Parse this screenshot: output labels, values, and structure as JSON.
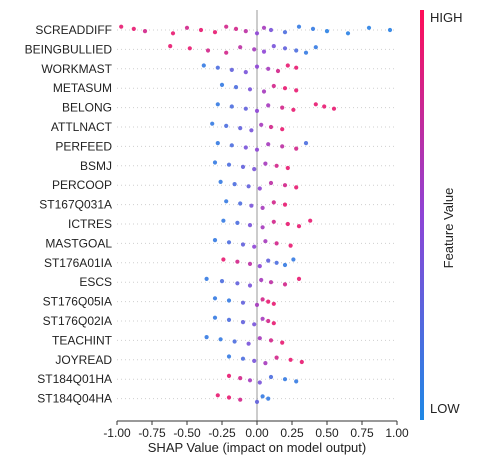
{
  "chart_data": {
    "type": "scatter",
    "subtype": "shap-beeswarm",
    "xlabel": "SHAP Value (impact on model output)",
    "xlim": [
      -1.0,
      1.0
    ],
    "xticks": [
      "-1.00",
      "-0.75",
      "-0.50",
      "-0.25",
      "0.00",
      "0.25",
      "0.50",
      "0.75",
      "1.00"
    ],
    "colorbar": {
      "label": "Feature Value",
      "high": "HIGH",
      "low": "LOW",
      "colors": [
        "#ff0d57",
        "#8e44d6",
        "#1e88e5"
      ]
    },
    "features": [
      {
        "name": "SCREADDIFF",
        "points": [
          [
            -0.97,
            0.9
          ],
          [
            -0.88,
            0.9
          ],
          [
            -0.8,
            0.8
          ],
          [
            -0.6,
            0.9
          ],
          [
            -0.5,
            0.8
          ],
          [
            -0.4,
            0.9
          ],
          [
            -0.3,
            0.9
          ],
          [
            -0.22,
            0.8
          ],
          [
            -0.15,
            0.8
          ],
          [
            -0.08,
            0.7
          ],
          [
            0.0,
            0.5
          ],
          [
            0.05,
            0.6
          ],
          [
            0.1,
            0.4
          ],
          [
            0.2,
            0.2
          ],
          [
            0.3,
            0.1
          ],
          [
            0.4,
            0.1
          ],
          [
            0.5,
            0.05
          ],
          [
            0.65,
            0.05
          ],
          [
            0.8,
            0.05
          ],
          [
            0.95,
            0.05
          ]
        ]
      },
      {
        "name": "BEINGBULLIED",
        "points": [
          [
            -0.62,
            0.9
          ],
          [
            -0.48,
            0.9
          ],
          [
            -0.35,
            0.8
          ],
          [
            -0.22,
            0.8
          ],
          [
            -0.12,
            0.7
          ],
          [
            -0.02,
            0.6
          ],
          [
            0.05,
            0.5
          ],
          [
            0.12,
            0.4
          ],
          [
            0.2,
            0.3
          ],
          [
            0.28,
            0.2
          ],
          [
            0.35,
            0.1
          ],
          [
            0.42,
            0.1
          ]
        ]
      },
      {
        "name": "WORKMAST",
        "points": [
          [
            -0.38,
            0.1
          ],
          [
            -0.28,
            0.2
          ],
          [
            -0.18,
            0.3
          ],
          [
            -0.08,
            0.4
          ],
          [
            0.0,
            0.5
          ],
          [
            0.08,
            0.6
          ],
          [
            0.15,
            0.8
          ],
          [
            0.22,
            0.9
          ],
          [
            0.28,
            0.9
          ]
        ]
      },
      {
        "name": "METASUM",
        "points": [
          [
            -0.25,
            0.1
          ],
          [
            -0.15,
            0.2
          ],
          [
            -0.05,
            0.4
          ],
          [
            0.05,
            0.6
          ],
          [
            0.12,
            0.8
          ],
          [
            0.2,
            0.9
          ],
          [
            0.28,
            0.9
          ]
        ]
      },
      {
        "name": "BELONG",
        "points": [
          [
            -0.28,
            0.1
          ],
          [
            -0.18,
            0.2
          ],
          [
            -0.08,
            0.3
          ],
          [
            0.0,
            0.5
          ],
          [
            0.08,
            0.6
          ],
          [
            0.18,
            0.8
          ],
          [
            0.26,
            0.9
          ],
          [
            0.42,
            0.9
          ],
          [
            0.48,
            0.9
          ],
          [
            0.55,
            0.9
          ]
        ]
      },
      {
        "name": "ATTLNACT",
        "points": [
          [
            -0.32,
            0.1
          ],
          [
            -0.22,
            0.2
          ],
          [
            -0.12,
            0.3
          ],
          [
            -0.04,
            0.4
          ],
          [
            0.03,
            0.6
          ],
          [
            0.1,
            0.8
          ],
          [
            0.18,
            0.9
          ]
        ]
      },
      {
        "name": "PERFEED",
        "points": [
          [
            -0.28,
            0.1
          ],
          [
            -0.18,
            0.2
          ],
          [
            -0.08,
            0.4
          ],
          [
            0.0,
            0.5
          ],
          [
            0.08,
            0.6
          ],
          [
            0.18,
            0.7
          ],
          [
            0.28,
            0.8
          ],
          [
            0.35,
            0.2
          ]
        ]
      },
      {
        "name": "BSMJ",
        "points": [
          [
            -0.3,
            0.1
          ],
          [
            -0.2,
            0.2
          ],
          [
            -0.1,
            0.3
          ],
          [
            -0.02,
            0.4
          ],
          [
            0.06,
            0.6
          ],
          [
            0.14,
            0.8
          ],
          [
            0.22,
            0.9
          ]
        ]
      },
      {
        "name": "PERCOOP",
        "points": [
          [
            -0.26,
            0.1
          ],
          [
            -0.16,
            0.2
          ],
          [
            -0.06,
            0.3
          ],
          [
            0.02,
            0.5
          ],
          [
            0.1,
            0.7
          ],
          [
            0.2,
            0.8
          ],
          [
            0.28,
            0.9
          ]
        ]
      },
      {
        "name": "ST167Q031A",
        "points": [
          [
            -0.22,
            0.1
          ],
          [
            -0.12,
            0.2
          ],
          [
            -0.04,
            0.4
          ],
          [
            0.04,
            0.6
          ],
          [
            0.12,
            0.8
          ],
          [
            0.2,
            0.9
          ]
        ]
      },
      {
        "name": "ICTRES",
        "points": [
          [
            -0.24,
            0.1
          ],
          [
            -0.14,
            0.2
          ],
          [
            -0.05,
            0.4
          ],
          [
            0.04,
            0.6
          ],
          [
            0.12,
            0.8
          ],
          [
            0.22,
            0.9
          ],
          [
            0.3,
            0.9
          ],
          [
            0.38,
            0.9
          ]
        ]
      },
      {
        "name": "MASTGOAL",
        "points": [
          [
            -0.3,
            0.1
          ],
          [
            -0.2,
            0.2
          ],
          [
            -0.1,
            0.3
          ],
          [
            -0.02,
            0.5
          ],
          [
            0.06,
            0.6
          ],
          [
            0.14,
            0.8
          ],
          [
            0.24,
            0.9
          ]
        ]
      },
      {
        "name": "ST176A01IA",
        "points": [
          [
            -0.24,
            0.9
          ],
          [
            -0.14,
            0.8
          ],
          [
            -0.05,
            0.7
          ],
          [
            0.02,
            0.5
          ],
          [
            0.08,
            0.3
          ],
          [
            0.14,
            0.2
          ],
          [
            0.2,
            0.1
          ],
          [
            0.26,
            0.1
          ]
        ]
      },
      {
        "name": "ESCS",
        "points": [
          [
            -0.36,
            0.1
          ],
          [
            -0.25,
            0.2
          ],
          [
            -0.14,
            0.3
          ],
          [
            -0.05,
            0.4
          ],
          [
            0.03,
            0.6
          ],
          [
            0.1,
            0.7
          ],
          [
            0.2,
            0.8
          ],
          [
            0.3,
            0.9
          ]
        ]
      },
      {
        "name": "ST176Q05IA",
        "points": [
          [
            -0.3,
            0.1
          ],
          [
            -0.2,
            0.1
          ],
          [
            -0.1,
            0.3
          ],
          [
            0.0,
            0.6
          ],
          [
            0.04,
            0.8
          ],
          [
            0.08,
            0.9
          ],
          [
            0.12,
            0.9
          ]
        ]
      },
      {
        "name": "ST176Q02IA",
        "points": [
          [
            -0.3,
            0.1
          ],
          [
            -0.2,
            0.2
          ],
          [
            -0.1,
            0.3
          ],
          [
            -0.02,
            0.4
          ],
          [
            0.04,
            0.6
          ],
          [
            0.08,
            0.8
          ],
          [
            0.12,
            0.9
          ]
        ]
      },
      {
        "name": "TEACHINT",
        "points": [
          [
            -0.36,
            0.1
          ],
          [
            -0.26,
            0.1
          ],
          [
            -0.16,
            0.2
          ],
          [
            -0.06,
            0.4
          ],
          [
            0.02,
            0.6
          ],
          [
            0.1,
            0.8
          ],
          [
            0.18,
            0.9
          ]
        ]
      },
      {
        "name": "JOYREAD",
        "points": [
          [
            -0.2,
            0.1
          ],
          [
            -0.1,
            0.2
          ],
          [
            -0.02,
            0.4
          ],
          [
            0.06,
            0.6
          ],
          [
            0.14,
            0.8
          ],
          [
            0.24,
            0.9
          ],
          [
            0.32,
            0.9
          ]
        ]
      },
      {
        "name": "ST184Q01HA",
        "points": [
          [
            -0.2,
            0.9
          ],
          [
            -0.12,
            0.8
          ],
          [
            -0.05,
            0.6
          ],
          [
            0.02,
            0.4
          ],
          [
            0.1,
            0.2
          ],
          [
            0.2,
            0.1
          ],
          [
            0.28,
            0.1
          ]
        ]
      },
      {
        "name": "ST184Q04HA",
        "points": [
          [
            -0.28,
            0.9
          ],
          [
            -0.2,
            0.9
          ],
          [
            -0.12,
            0.8
          ],
          [
            0.0,
            0.3
          ],
          [
            0.04,
            0.1
          ],
          [
            0.08,
            0.1
          ]
        ]
      }
    ]
  }
}
